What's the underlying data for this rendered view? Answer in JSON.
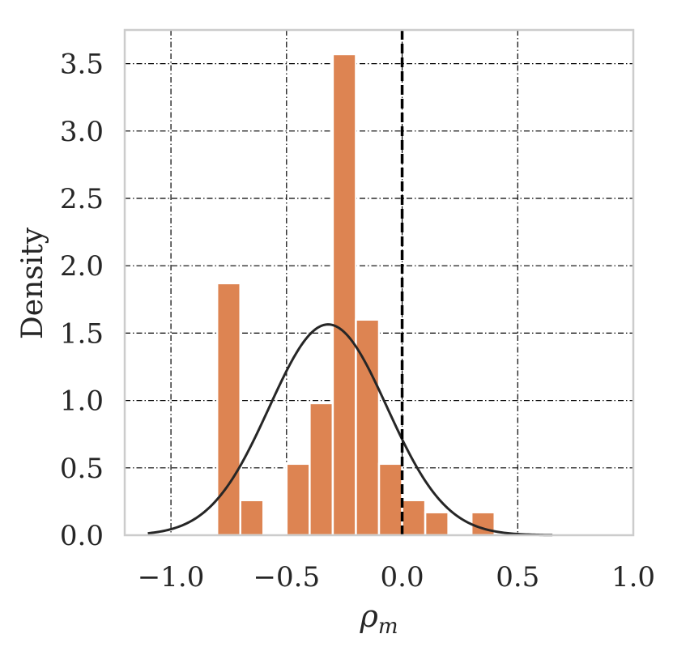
{
  "chart_data": {
    "type": "bar",
    "subtype": "histogram",
    "ylabel": "Density",
    "xlabel_symbol": "ρ",
    "xlabel_subscript": "m",
    "xlim": [
      -1.2,
      1.0
    ],
    "ylim": [
      0.0,
      3.75
    ],
    "xticks": [
      -1.0,
      -0.5,
      0.0,
      0.5,
      1.0
    ],
    "xtick_labels": [
      "−1.0",
      "−0.5",
      "0.0",
      "0.5",
      "1.0"
    ],
    "yticks": [
      0.0,
      0.5,
      1.0,
      1.5,
      2.0,
      2.5,
      3.0,
      3.5
    ],
    "ytick_labels": [
      "0.0",
      "0.5",
      "1.0",
      "1.5",
      "2.0",
      "2.5",
      "3.0",
      "3.5"
    ],
    "grid": true,
    "bar_color": "#dd8452",
    "curve_color": "#262626",
    "bins": [
      {
        "x0": -0.8,
        "x1": -0.7,
        "density": 1.87
      },
      {
        "x0": -0.7,
        "x1": -0.6,
        "density": 0.26
      },
      {
        "x0": -0.5,
        "x1": -0.4,
        "density": 0.53
      },
      {
        "x0": -0.4,
        "x1": -0.3,
        "density": 0.98
      },
      {
        "x0": -0.3,
        "x1": -0.2,
        "density": 3.57
      },
      {
        "x0": -0.2,
        "x1": -0.1,
        "density": 1.6
      },
      {
        "x0": -0.1,
        "x1": 0.0,
        "density": 0.53
      },
      {
        "x0": 0.0,
        "x1": 0.1,
        "density": 0.26
      },
      {
        "x0": 0.1,
        "x1": 0.2,
        "density": 0.17
      },
      {
        "x0": 0.3,
        "x1": 0.4,
        "density": 0.17
      }
    ],
    "normal_fit": {
      "mean": -0.32,
      "std": 0.255,
      "x_range": [
        -1.1,
        0.65
      ]
    },
    "reference_line_x": 0.0
  }
}
